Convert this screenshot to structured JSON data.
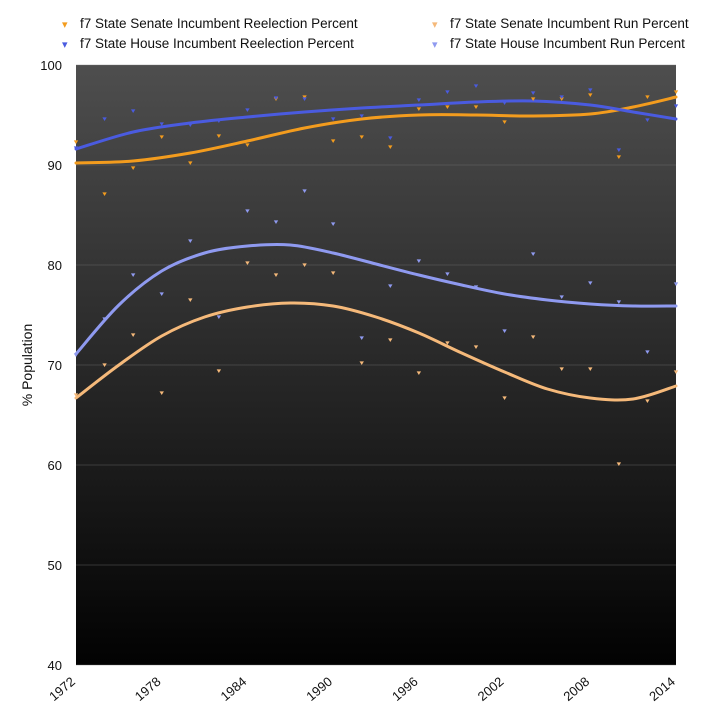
{
  "chart_data": {
    "type": "scatter",
    "title": "",
    "xlabel": "",
    "ylabel": "% Population",
    "xlim": [
      1972,
      2014
    ],
    "ylim": [
      40,
      100
    ],
    "x_ticks": [
      "1972",
      "1978",
      "1984",
      "1990",
      "1996",
      "2002",
      "2008",
      "2014"
    ],
    "y_ticks": [
      "40",
      "50",
      "60",
      "70",
      "80",
      "90",
      "100"
    ],
    "grid": true,
    "legend_position": "top",
    "series": [
      {
        "name": "f7 State Senate Incumbent Reelection Percent",
        "color": "#f39c1e",
        "x": [
          1972,
          1974,
          1976,
          1978,
          1980,
          1982,
          1984,
          1986,
          1988,
          1990,
          1992,
          1994,
          1996,
          1998,
          2000,
          2002,
          2004,
          2006,
          2008,
          2010,
          2012,
          2014
        ],
        "y": [
          92.3,
          87.1,
          89.7,
          92.8,
          90.2,
          92.9,
          92.0,
          96.6,
          96.8,
          92.4,
          92.8,
          91.8,
          95.6,
          95.8,
          95.8,
          94.3,
          96.6,
          96.6,
          97.0,
          90.8,
          96.8,
          97.3
        ],
        "trend": [
          [
            1972,
            90.2
          ],
          [
            1976,
            90.4
          ],
          [
            1980,
            91.2
          ],
          [
            1984,
            92.4
          ],
          [
            1988,
            93.7
          ],
          [
            1992,
            94.6
          ],
          [
            1996,
            95.0
          ],
          [
            2000,
            95.0
          ],
          [
            2004,
            94.9
          ],
          [
            2008,
            95.1
          ],
          [
            2011,
            95.8
          ],
          [
            2014,
            96.8
          ]
        ]
      },
      {
        "name": "f7 State House Incumbent Reelection Percent",
        "color": "#4a5be0",
        "x": [
          1972,
          1974,
          1976,
          1978,
          1980,
          1982,
          1984,
          1986,
          1988,
          1990,
          1992,
          1994,
          1996,
          1998,
          2000,
          2002,
          2004,
          2006,
          2008,
          2010,
          2012,
          2014
        ],
        "y": [
          91.7,
          94.6,
          95.4,
          94.1,
          94.0,
          94.4,
          95.5,
          96.7,
          96.6,
          94.6,
          94.9,
          92.7,
          96.5,
          97.3,
          97.9,
          96.2,
          97.2,
          96.8,
          97.5,
          91.5,
          94.5,
          95.9
        ],
        "trend": [
          [
            1972,
            91.6
          ],
          [
            1976,
            93.3
          ],
          [
            1980,
            94.2
          ],
          [
            1984,
            94.8
          ],
          [
            1988,
            95.3
          ],
          [
            1992,
            95.7
          ],
          [
            1996,
            96.0
          ],
          [
            2000,
            96.3
          ],
          [
            2004,
            96.4
          ],
          [
            2008,
            96.0
          ],
          [
            2011,
            95.3
          ],
          [
            2014,
            94.6
          ]
        ]
      },
      {
        "name": "f7 State Senate Incumbent Run Percent",
        "color": "#f5b97a",
        "x": [
          1972,
          1974,
          1976,
          1978,
          1980,
          1982,
          1984,
          1986,
          1988,
          1990,
          1992,
          1994,
          1996,
          1998,
          2000,
          2002,
          2004,
          2006,
          2008,
          2010,
          2012,
          2014
        ],
        "y": [
          67.0,
          70.0,
          73.0,
          67.2,
          76.5,
          69.4,
          80.2,
          79.0,
          80.0,
          79.2,
          70.2,
          72.5,
          69.2,
          72.2,
          71.8,
          66.7,
          72.8,
          69.6,
          69.6,
          60.1,
          66.4,
          69.3
        ],
        "trend": [
          [
            1972,
            66.7
          ],
          [
            1975,
            70.0
          ],
          [
            1978,
            72.9
          ],
          [
            1981,
            74.8
          ],
          [
            1984,
            75.8
          ],
          [
            1987,
            76.2
          ],
          [
            1990,
            75.9
          ],
          [
            1993,
            74.8
          ],
          [
            1996,
            73.2
          ],
          [
            1999,
            71.2
          ],
          [
            2002,
            69.3
          ],
          [
            2005,
            67.6
          ],
          [
            2008,
            66.7
          ],
          [
            2011,
            66.6
          ],
          [
            2014,
            67.9
          ]
        ]
      },
      {
        "name": "f7 State House Incumbent Run Percent",
        "color": "#8f9af0",
        "x": [
          1972,
          1974,
          1976,
          1978,
          1980,
          1982,
          1984,
          1986,
          1988,
          1990,
          1992,
          1994,
          1996,
          1998,
          2000,
          2002,
          2004,
          2006,
          2008,
          2010,
          2012,
          2014
        ],
        "y": [
          71.0,
          74.6,
          79.0,
          77.1,
          82.4,
          74.8,
          85.4,
          84.3,
          87.4,
          84.1,
          72.7,
          77.9,
          80.4,
          79.1,
          77.8,
          73.4,
          81.1,
          76.8,
          78.2,
          76.3,
          71.3,
          78.1
        ],
        "trend": [
          [
            1972,
            71.1
          ],
          [
            1975,
            76.0
          ],
          [
            1978,
            79.4
          ],
          [
            1981,
            81.2
          ],
          [
            1984,
            81.9
          ],
          [
            1987,
            82.0
          ],
          [
            1990,
            81.2
          ],
          [
            1993,
            80.1
          ],
          [
            1996,
            79.0
          ],
          [
            1999,
            78.0
          ],
          [
            2002,
            77.1
          ],
          [
            2005,
            76.5
          ],
          [
            2008,
            76.1
          ],
          [
            2011,
            75.9
          ],
          [
            2014,
            75.9
          ]
        ]
      }
    ]
  }
}
